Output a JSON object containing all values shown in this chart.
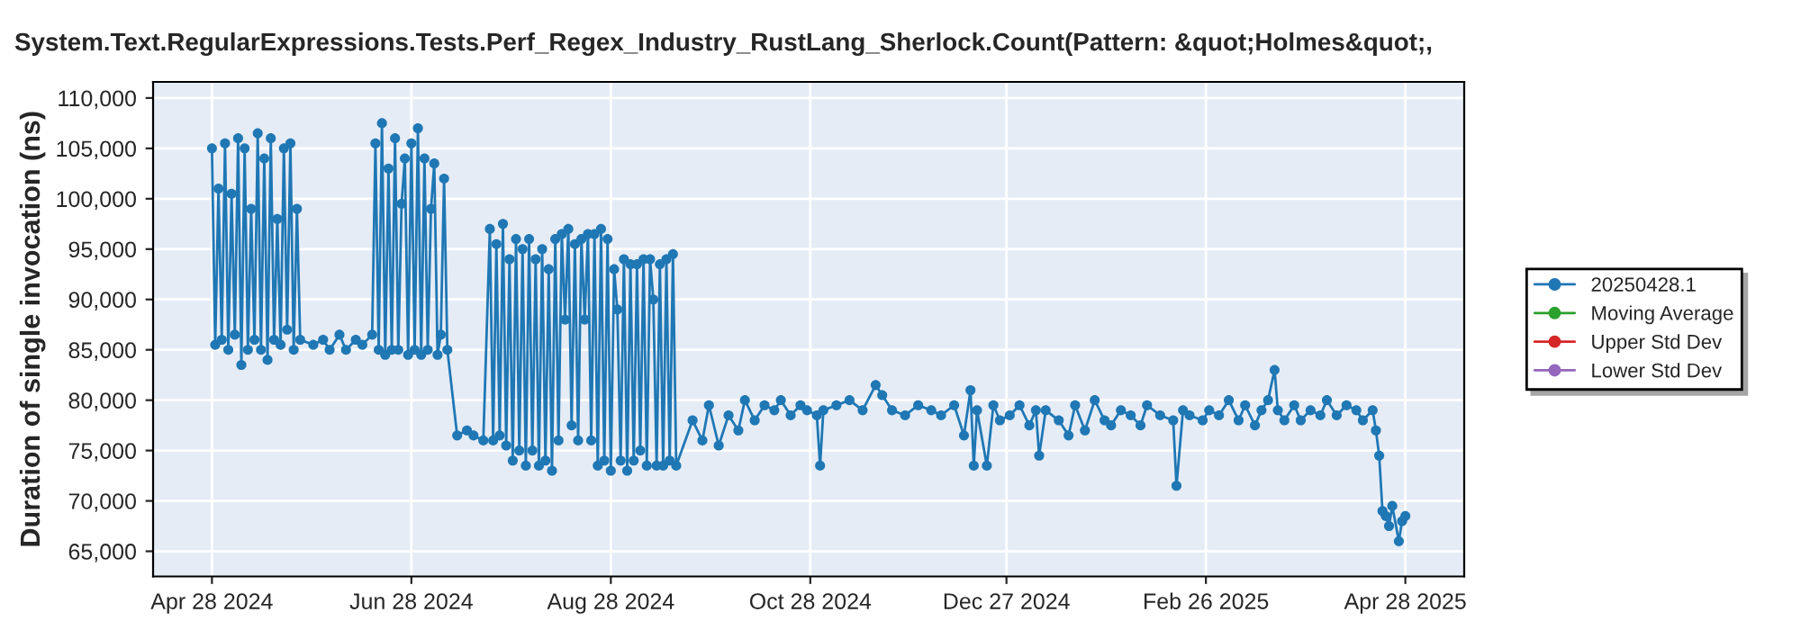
{
  "chart_data": {
    "type": "line",
    "title": "System.Text.RegularExpressions.Tests.Perf_Regex_Industry_RustLang_Sherlock.Count(Pattern: &quot;Holmes&quot;,",
    "ylabel": "Duration of single invocation (ns)",
    "x": [
      "2024-04-28",
      "2024-04-29",
      "2024-04-30",
      "2024-05-01",
      "2024-05-02",
      "2024-05-03",
      "2024-05-04",
      "2024-05-05",
      "2024-05-06",
      "2024-05-07",
      "2024-05-08",
      "2024-05-09",
      "2024-05-10",
      "2024-05-11",
      "2024-05-12",
      "2024-05-13",
      "2024-05-14",
      "2024-05-15",
      "2024-05-16",
      "2024-05-17",
      "2024-05-18",
      "2024-05-19",
      "2024-05-20",
      "2024-05-21",
      "2024-05-22",
      "2024-05-23",
      "2024-05-24",
      "2024-05-25",
      "2024-05-29",
      "2024-06-01",
      "2024-06-03",
      "2024-06-06",
      "2024-06-08",
      "2024-06-11",
      "2024-06-13",
      "2024-06-16",
      "2024-06-17",
      "2024-06-18",
      "2024-06-19",
      "2024-06-20",
      "2024-06-21",
      "2024-06-22",
      "2024-06-23",
      "2024-06-24",
      "2024-06-25",
      "2024-06-26",
      "2024-06-27",
      "2024-06-28",
      "2024-06-29",
      "2024-06-30",
      "2024-07-01",
      "2024-07-02",
      "2024-07-03",
      "2024-07-04",
      "2024-07-05",
      "2024-07-06",
      "2024-07-07",
      "2024-07-08",
      "2024-07-09",
      "2024-07-12",
      "2024-07-15",
      "2024-07-17",
      "2024-07-20",
      "2024-07-22",
      "2024-07-23",
      "2024-07-24",
      "2024-07-25",
      "2024-07-26",
      "2024-07-27",
      "2024-07-28",
      "2024-07-29",
      "2024-07-30",
      "2024-07-31",
      "2024-08-01",
      "2024-08-02",
      "2024-08-03",
      "2024-08-04",
      "2024-08-05",
      "2024-08-06",
      "2024-08-07",
      "2024-08-08",
      "2024-08-09",
      "2024-08-10",
      "2024-08-11",
      "2024-08-12",
      "2024-08-13",
      "2024-08-14",
      "2024-08-15",
      "2024-08-16",
      "2024-08-17",
      "2024-08-18",
      "2024-08-19",
      "2024-08-20",
      "2024-08-21",
      "2024-08-22",
      "2024-08-23",
      "2024-08-24",
      "2024-08-25",
      "2024-08-26",
      "2024-08-27",
      "2024-08-28",
      "2024-08-29",
      "2024-08-30",
      "2024-08-31",
      "2024-09-01",
      "2024-09-02",
      "2024-09-03",
      "2024-09-04",
      "2024-09-05",
      "2024-09-06",
      "2024-09-07",
      "2024-09-08",
      "2024-09-09",
      "2024-09-10",
      "2024-09-11",
      "2024-09-12",
      "2024-09-13",
      "2024-09-14",
      "2024-09-15",
      "2024-09-16",
      "2024-09-17",
      "2024-09-22",
      "2024-09-25",
      "2024-09-27",
      "2024-09-30",
      "2024-10-03",
      "2024-10-06",
      "2024-10-08",
      "2024-10-11",
      "2024-10-14",
      "2024-10-17",
      "2024-10-19",
      "2024-10-22",
      "2024-10-25",
      "2024-10-27",
      "2024-10-30",
      "2024-10-31",
      "2024-11-01",
      "2024-11-05",
      "2024-11-09",
      "2024-11-13",
      "2024-11-17",
      "2024-11-19",
      "2024-11-22",
      "2024-11-26",
      "2024-11-30",
      "2024-12-04",
      "2024-12-07",
      "2024-12-11",
      "2024-12-14",
      "2024-12-16",
      "2024-12-17",
      "2024-12-18",
      "2024-12-21",
      "2024-12-23",
      "2024-12-25",
      "2024-12-28",
      "2024-12-31",
      "2025-01-03",
      "2025-01-05",
      "2025-01-06",
      "2025-01-08",
      "2025-01-12",
      "2025-01-15",
      "2025-01-17",
      "2025-01-20",
      "2025-01-23",
      "2025-01-26",
      "2025-01-28",
      "2025-01-31",
      "2025-02-03",
      "2025-02-06",
      "2025-02-08",
      "2025-02-12",
      "2025-02-16",
      "2025-02-17",
      "2025-02-19",
      "2025-02-21",
      "2025-02-25",
      "2025-02-27",
      "2025-03-02",
      "2025-03-05",
      "2025-03-08",
      "2025-03-10",
      "2025-03-13",
      "2025-03-15",
      "2025-03-17",
      "2025-03-19",
      "2025-03-20",
      "2025-03-22",
      "2025-03-25",
      "2025-03-27",
      "2025-03-30",
      "2025-04-02",
      "2025-04-04",
      "2025-04-07",
      "2025-04-10",
      "2025-04-13",
      "2025-04-15",
      "2025-04-18",
      "2025-04-19",
      "2025-04-20",
      "2025-04-21",
      "2025-04-22",
      "2025-04-23",
      "2025-04-24",
      "2025-04-26",
      "2025-04-27",
      "2025-04-28"
    ],
    "series": [
      {
        "name": "20250428.1",
        "color": "#1f77b4",
        "values": [
          105000,
          85500,
          101000,
          86000,
          105500,
          85000,
          100500,
          86500,
          106000,
          83500,
          105000,
          85000,
          99000,
          86000,
          106500,
          85000,
          104000,
          84000,
          106000,
          86000,
          98000,
          85500,
          105000,
          87000,
          105500,
          85000,
          99000,
          86000,
          85500,
          86000,
          85000,
          86500,
          85000,
          86000,
          85500,
          86500,
          105500,
          85000,
          107500,
          84500,
          103000,
          85000,
          106000,
          85000,
          99500,
          104000,
          84500,
          105500,
          85000,
          107000,
          84500,
          104000,
          85000,
          99000,
          103500,
          84500,
          86500,
          102000,
          85000,
          76500,
          77000,
          76500,
          76000,
          97000,
          76000,
          95500,
          76500,
          97500,
          75500,
          94000,
          74000,
          96000,
          75000,
          95000,
          73500,
          96000,
          75000,
          94000,
          73500,
          95000,
          74000,
          93000,
          73000,
          96000,
          76000,
          96500,
          88000,
          97000,
          77500,
          95500,
          76000,
          96000,
          88000,
          96500,
          76000,
          96500,
          73500,
          97000,
          74000,
          96000,
          73000,
          93000,
          89000,
          74000,
          94000,
          73000,
          93500,
          74000,
          93500,
          75000,
          94000,
          73500,
          94000,
          90000,
          73500,
          93500,
          73500,
          94000,
          74000,
          94500,
          73500,
          78000,
          76000,
          79500,
          75500,
          78500,
          77000,
          80000,
          78000,
          79500,
          79000,
          80000,
          78500,
          79500,
          79000,
          78500,
          73500,
          79000,
          79500,
          80000,
          79000,
          81500,
          80500,
          79000,
          78500,
          79500,
          79000,
          78500,
          79500,
          76500,
          81000,
          73500,
          79000,
          73500,
          79500,
          78000,
          78500,
          79500,
          77500,
          79000,
          74500,
          79000,
          78000,
          76500,
          79500,
          77000,
          80000,
          78000,
          77500,
          79000,
          78500,
          77500,
          79500,
          78500,
          78000,
          71500,
          79000,
          78500,
          78000,
          79000,
          78500,
          80000,
          78000,
          79500,
          77500,
          79000,
          80000,
          83000,
          79000,
          78000,
          79500,
          78000,
          79000,
          78500,
          80000,
          78500,
          79500,
          79000,
          78000,
          79000,
          77000,
          74500,
          69000,
          68500,
          67500,
          69500,
          66000,
          68000,
          68500
        ]
      },
      {
        "name": "Moving Average",
        "color": "#2ca02c",
        "values": [
          null,
          null,
          null,
          null,
          null,
          null,
          null,
          null,
          null,
          null,
          null,
          null,
          null,
          null,
          null,
          null,
          null,
          null,
          null,
          null,
          null,
          null,
          null,
          null,
          null,
          null,
          null,
          null,
          null,
          null,
          null,
          null,
          null,
          null,
          null,
          null,
          null,
          null,
          null,
          null,
          null,
          null,
          null,
          null,
          null,
          null,
          null,
          null,
          null,
          null,
          null,
          null,
          null,
          null,
          null,
          null,
          null,
          null,
          null,
          null,
          null,
          null,
          null,
          null,
          null,
          null,
          null,
          null,
          null,
          null,
          null,
          null,
          null,
          null,
          null,
          null,
          null,
          null,
          null,
          null,
          null,
          null,
          null,
          null,
          null,
          null,
          null,
          null,
          null,
          null,
          null,
          null,
          null,
          null,
          null,
          null,
          null,
          null,
          null,
          null,
          null,
          null,
          null,
          null,
          null,
          null,
          null,
          null,
          null,
          null,
          null,
          null,
          null,
          null,
          null,
          null,
          null,
          null,
          null,
          null,
          null,
          null,
          null,
          null,
          null,
          null,
          null,
          null,
          null,
          null,
          null,
          null,
          null,
          null,
          null,
          null,
          null,
          null,
          null,
          null,
          null,
          null,
          null,
          null,
          null,
          null,
          null,
          null,
          null,
          null,
          null,
          null,
          null,
          null,
          null,
          null,
          null,
          null,
          null,
          null,
          null,
          null,
          null,
          null,
          null,
          null,
          null,
          null,
          null,
          null,
          null,
          null,
          null,
          null,
          null,
          null,
          null,
          null,
          null,
          null,
          null,
          null,
          null,
          null,
          null,
          null,
          null,
          null,
          null,
          null,
          null,
          null,
          null,
          null,
          null,
          null,
          null,
          null,
          null,
          null,
          null,
          null,
          null,
          null,
          null,
          null,
          null,
          null,
          null
        ]
      },
      {
        "name": "Upper Std Dev",
        "color": "#d62728",
        "values": [
          null,
          null,
          null,
          null,
          null,
          null,
          null,
          null,
          null,
          null,
          null,
          null,
          null,
          null,
          null,
          null,
          null,
          null,
          null,
          null,
          null,
          null,
          null,
          null,
          null,
          null,
          null,
          null,
          null,
          null,
          null,
          null,
          null,
          null,
          null,
          null,
          null,
          null,
          null,
          null,
          null,
          null,
          null,
          null,
          null,
          null,
          null,
          null,
          null,
          null,
          null,
          null,
          null,
          null,
          null,
          null,
          null,
          null,
          null,
          null,
          null,
          null,
          null,
          null,
          null,
          null,
          null,
          null,
          null,
          null,
          null,
          null,
          null,
          null,
          null,
          null,
          null,
          null,
          null,
          null,
          null,
          null,
          null,
          null,
          null,
          null,
          null,
          null,
          null,
          null,
          null,
          null,
          null,
          null,
          null,
          null,
          null,
          null,
          null,
          null,
          null,
          null,
          null,
          null,
          null,
          null,
          null,
          null,
          null,
          null,
          null,
          null,
          null,
          null,
          null,
          null,
          null,
          null,
          null,
          null,
          null,
          null,
          null,
          null,
          null,
          null,
          null,
          null,
          null,
          null,
          null,
          null,
          null,
          null,
          null,
          null,
          null,
          null,
          null,
          null,
          null,
          null,
          null,
          null,
          null,
          null,
          null,
          null,
          null,
          null,
          null,
          null,
          null,
          null,
          null,
          null,
          null,
          null,
          null,
          null,
          null,
          null,
          null,
          null,
          null,
          null,
          null,
          null,
          null,
          null,
          null,
          null,
          null,
          null,
          null,
          null,
          null,
          null,
          null,
          null,
          null,
          null,
          null,
          null,
          null,
          null,
          null,
          null,
          null,
          null,
          null,
          null,
          null,
          null,
          null,
          null,
          null,
          null,
          null,
          null,
          null,
          null,
          null,
          null,
          null,
          null,
          null,
          null,
          null
        ]
      },
      {
        "name": "Lower Std Dev",
        "color": "#9467bd",
        "values": [
          null,
          null,
          null,
          null,
          null,
          null,
          null,
          null,
          null,
          null,
          null,
          null,
          null,
          null,
          null,
          null,
          null,
          null,
          null,
          null,
          null,
          null,
          null,
          null,
          null,
          null,
          null,
          null,
          null,
          null,
          null,
          null,
          null,
          null,
          null,
          null,
          null,
          null,
          null,
          null,
          null,
          null,
          null,
          null,
          null,
          null,
          null,
          null,
          null,
          null,
          null,
          null,
          null,
          null,
          null,
          null,
          null,
          null,
          null,
          null,
          null,
          null,
          null,
          null,
          null,
          null,
          null,
          null,
          null,
          null,
          null,
          null,
          null,
          null,
          null,
          null,
          null,
          null,
          null,
          null,
          null,
          null,
          null,
          null,
          null,
          null,
          null,
          null,
          null,
          null,
          null,
          null,
          null,
          null,
          null,
          null,
          null,
          null,
          null,
          null,
          null,
          null,
          null,
          null,
          null,
          null,
          null,
          null,
          null,
          null,
          null,
          null,
          null,
          null,
          null,
          null,
          null,
          null,
          null,
          null,
          null,
          null,
          null,
          null,
          null,
          null,
          null,
          null,
          null,
          null,
          null,
          null,
          null,
          null,
          null,
          null,
          null,
          null,
          null,
          null,
          null,
          null,
          null,
          null,
          null,
          null,
          null,
          null,
          null,
          null,
          null,
          null,
          null,
          null,
          null,
          null,
          null,
          null,
          null,
          null,
          null,
          null,
          null,
          null,
          null,
          null,
          null,
          null,
          null,
          null,
          null,
          null,
          null,
          null,
          null,
          null,
          null,
          null,
          null,
          null,
          null,
          null,
          null,
          null,
          null,
          null,
          null,
          null,
          null,
          null,
          null,
          null,
          null,
          null,
          null,
          null,
          null,
          null,
          null,
          null,
          null,
          null,
          null,
          null,
          null,
          null,
          null,
          null,
          null
        ]
      }
    ],
    "xlim": [
      "2024-04-10",
      "2025-05-16"
    ],
    "xticks": [
      {
        "value": "2024-04-28",
        "label": "Apr 28 2024"
      },
      {
        "value": "2024-06-28",
        "label": "Jun 28 2024"
      },
      {
        "value": "2024-08-28",
        "label": "Aug 28 2024"
      },
      {
        "value": "2024-10-28",
        "label": "Oct 28 2024"
      },
      {
        "value": "2024-12-27",
        "label": "Dec 27 2024"
      },
      {
        "value": "2025-02-26",
        "label": "Feb 26 2025"
      },
      {
        "value": "2025-04-28",
        "label": "Apr 28 2025"
      }
    ],
    "ylim": [
      62500,
      111600
    ],
    "yticks": [
      {
        "value": 65000,
        "label": "65,000"
      },
      {
        "value": 70000,
        "label": "70,000"
      },
      {
        "value": 75000,
        "label": "75,000"
      },
      {
        "value": 80000,
        "label": "80,000"
      },
      {
        "value": 85000,
        "label": "85,000"
      },
      {
        "value": 90000,
        "label": "90,000"
      },
      {
        "value": 95000,
        "label": "95,000"
      },
      {
        "value": 100000,
        "label": "100,000"
      },
      {
        "value": 105000,
        "label": "105,000"
      },
      {
        "value": 110000,
        "label": "110,000"
      }
    ],
    "grid": true,
    "legend": "right",
    "marker": "circle",
    "line_style": "solid"
  }
}
